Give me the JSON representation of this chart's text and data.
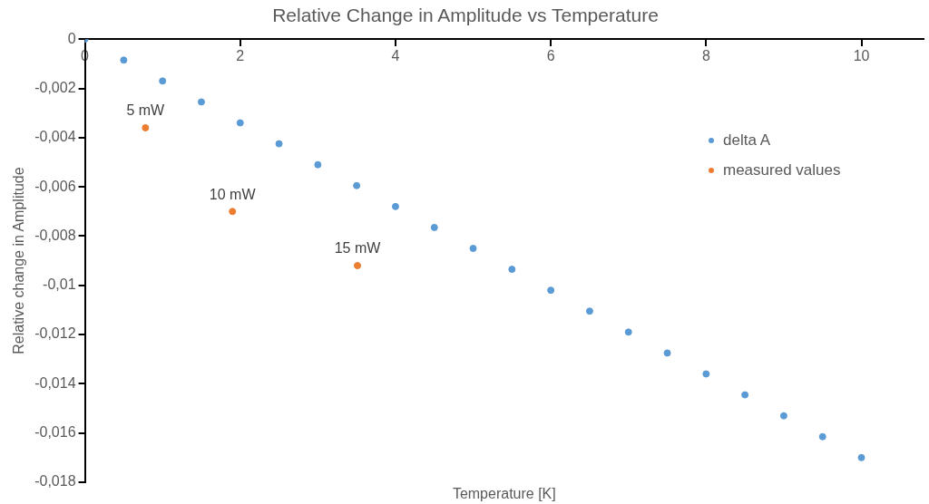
{
  "chart_data": {
    "type": "scatter",
    "title": "Relative Change in Amplitude vs Temperature",
    "xlabel": "Temperature [K]",
    "ylabel": "Relative change in Amplitude",
    "xlim": [
      0,
      10.8
    ],
    "xticks": [
      0,
      2,
      4,
      6,
      8,
      10
    ],
    "ylim": [
      -0.018,
      0
    ],
    "yticks": [
      0,
      {
        "value": -0.002,
        "label": "-0,002"
      },
      {
        "value": -0.004,
        "label": "-0,004"
      },
      {
        "value": -0.006,
        "label": "-0,006"
      },
      {
        "value": -0.008,
        "label": "-0,008"
      },
      {
        "value": -0.01,
        "label": "-0,01"
      },
      {
        "value": -0.012,
        "label": "-0,012"
      },
      {
        "value": -0.014,
        "label": "-0,014"
      },
      {
        "value": -0.016,
        "label": "-0,016"
      },
      {
        "value": -0.018,
        "label": "-0,018"
      }
    ],
    "grid": false,
    "legend": "right",
    "marker": "circle",
    "series": [
      {
        "name": "delta A",
        "color": "#5b9bd5",
        "x": [
          0,
          0.5,
          1,
          1.5,
          2,
          2.5,
          3,
          3.5,
          4,
          4.5,
          5,
          5.5,
          6,
          6.5,
          7,
          7.5,
          8,
          8.5,
          9,
          9.5,
          10
        ],
        "values": [
          0,
          -0.00085,
          -0.0017,
          -0.00255,
          -0.0034,
          -0.00425,
          -0.0051,
          -0.00595,
          -0.0068,
          -0.00765,
          -0.0085,
          -0.00935,
          -0.0102,
          -0.01105,
          -0.0119,
          -0.01275,
          -0.0136,
          -0.01445,
          -0.0153,
          -0.01615,
          -0.017
        ]
      },
      {
        "name": "measured values",
        "color": "#ed7d31",
        "x": [
          0.78,
          1.9,
          3.51
        ],
        "values": [
          -0.0036,
          -0.007,
          -0.0092
        ]
      }
    ],
    "annotations": [
      {
        "text": "5 mW",
        "x": 0.78,
        "y": -0.0036
      },
      {
        "text": "10 mW",
        "x": 1.9,
        "y": -0.007
      },
      {
        "text": "15 mW",
        "x": 3.51,
        "y": -0.0092
      }
    ]
  }
}
